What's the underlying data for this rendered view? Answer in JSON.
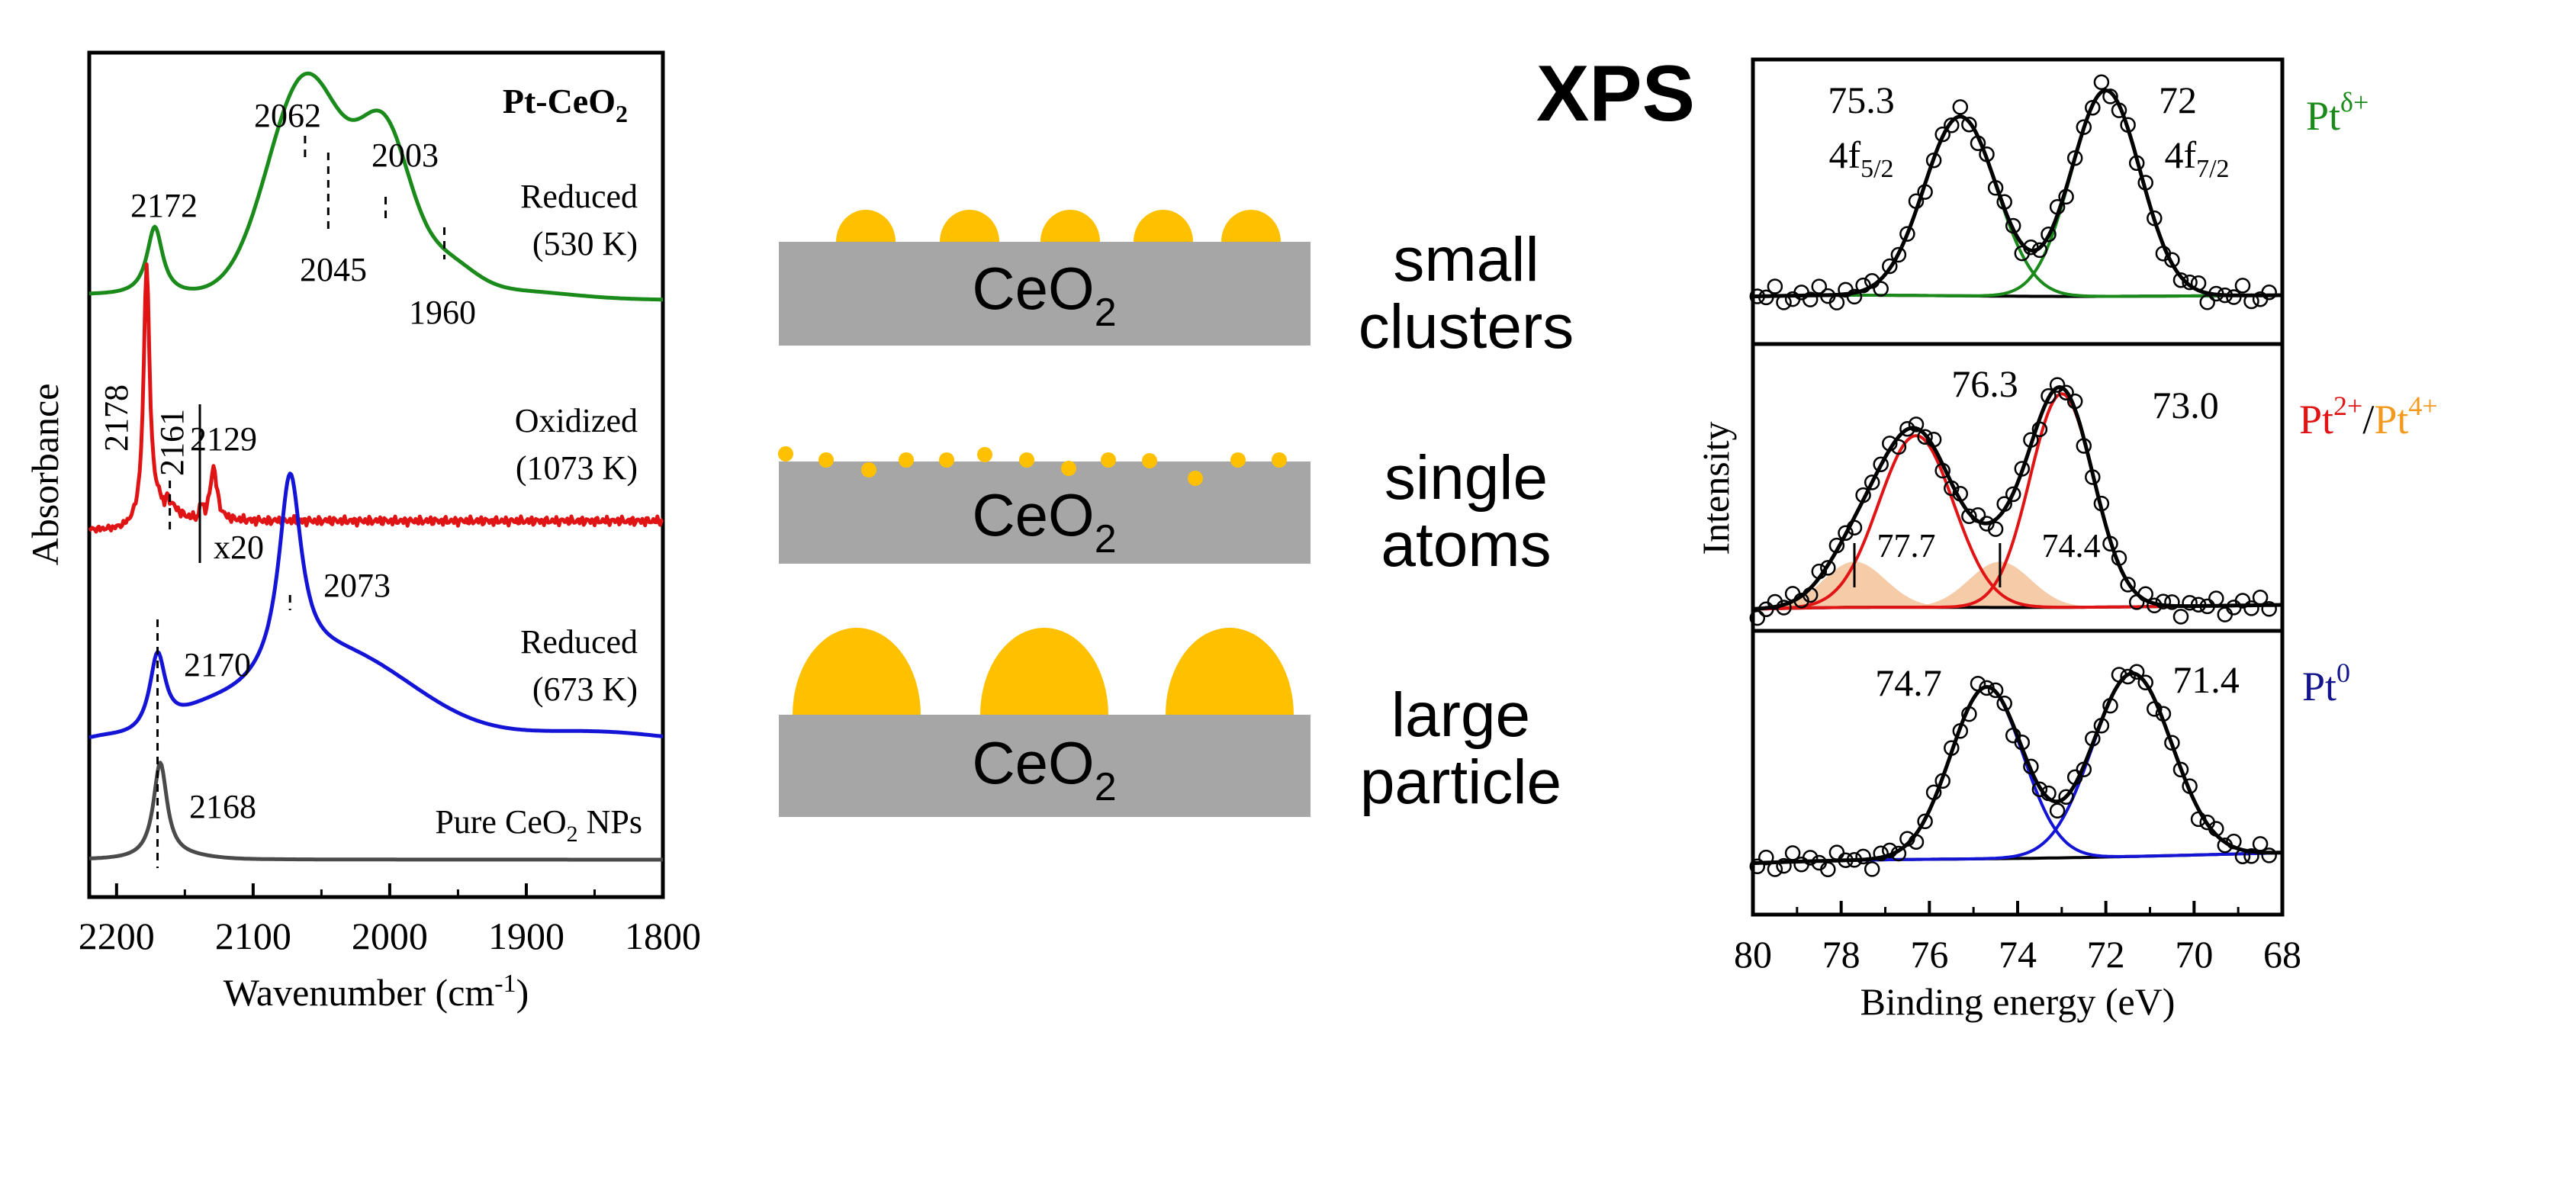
{
  "colors": {
    "green": "#1a8a1a",
    "red": "#e01414",
    "blue": "#1414d6",
    "gray": "#4a4a4a",
    "black": "#000000",
    "orange_fill": "#f3b98b",
    "orange_text": "#f39a1e",
    "gold": "#ffc000",
    "substrate": "#a6a6a6",
    "navy": "#14148c"
  },
  "chart_data": [
    {
      "type": "line",
      "panel": "IR",
      "title_main": "Pt-CeO",
      "title_sub": "2",
      "xlabel_main": "Wavenumber (cm",
      "xlabel_sup": "-1",
      "xlabel_end": ")",
      "ylabel": "Absorbance",
      "xlim": [
        2220,
        1800
      ],
      "xticks": [
        "2200",
        "2100",
        "2000",
        "1900",
        "1800"
      ],
      "x_reversed": true,
      "series": [
        {
          "name_line1": "Reduced",
          "name_line2": "(530 K)",
          "color": "green",
          "peaks": [
            {
              "label": "2172"
            },
            {
              "label": "2062"
            },
            {
              "label": "2045"
            },
            {
              "label": "2003"
            },
            {
              "label": "1960"
            }
          ]
        },
        {
          "name_line1": "Oxidized",
          "name_line2": "(1073 K)",
          "color": "red",
          "scale_label": "x20",
          "peaks": [
            {
              "label": "2178"
            },
            {
              "label": "2161"
            },
            {
              "label": "2129"
            }
          ]
        },
        {
          "name_line1": "Reduced",
          "name_line2": "(673 K)",
          "color": "blue",
          "peaks": [
            {
              "label": "2170"
            },
            {
              "label": "2073"
            }
          ]
        },
        {
          "name_pre": "Pure CeO",
          "name_sub": "2",
          "name_post": " NPs",
          "color": "gray",
          "peaks": [
            {
              "label": "2168"
            }
          ]
        }
      ]
    },
    {
      "type": "line",
      "panel": "XPS",
      "title": "XPS",
      "xlabel": "Binding energy (eV)",
      "ylabel": "Intensity",
      "xlim": [
        80,
        68
      ],
      "xticks": [
        "80",
        "78",
        "76",
        "74",
        "72",
        "70",
        "68"
      ],
      "x_reversed": true,
      "subplots": [
        {
          "species_main": "Pt",
          "species_sup": "δ+",
          "color": "green",
          "peaks": [
            {
              "position": 75.3,
              "label": "75.3",
              "orbital_main": "4f",
              "orbital_sub": "5/2"
            },
            {
              "position": 72.0,
              "label": "72",
              "orbital_main": "4f",
              "orbital_sub": "7/2"
            }
          ]
        },
        {
          "species_main_a": "Pt",
          "species_sup_a": "2+",
          "species_sep": "/",
          "species_main_b": "Pt",
          "species_sup_b": "4+",
          "color": "red",
          "peaks": [
            {
              "position": 76.3,
              "label": "76.3"
            },
            {
              "position": 73.0,
              "label": "73.0"
            },
            {
              "position": 77.7,
              "label": "77.7",
              "shaded": true
            },
            {
              "position": 74.4,
              "label": "74.4",
              "shaded": true
            }
          ]
        },
        {
          "species_main": "Pt",
          "species_sup": "0",
          "color": "blue",
          "peaks": [
            {
              "position": 74.7,
              "label": "74.7"
            },
            {
              "position": 71.4,
              "label": "71.4"
            }
          ]
        }
      ]
    }
  ],
  "schematic": [
    {
      "substrate_main": "CeO",
      "substrate_sub": "2",
      "line1": "small",
      "line2": "clusters"
    },
    {
      "substrate_main": "CeO",
      "substrate_sub": "2",
      "line1": "single",
      "line2": "atoms"
    },
    {
      "substrate_main": "CeO",
      "substrate_sub": "2",
      "line1": "large",
      "line2": "particle"
    }
  ]
}
